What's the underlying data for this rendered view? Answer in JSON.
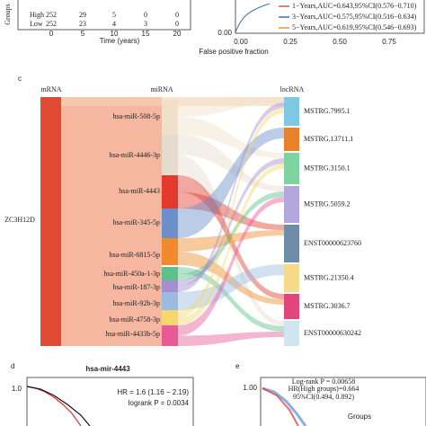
{
  "panel_b": {
    "risk_table": {
      "y_label": "Groups",
      "rows": [
        [
          "High",
          "252",
          "29",
          "5",
          "0",
          "0"
        ],
        [
          "Low",
          "252",
          "23",
          "4",
          "3",
          "0"
        ]
      ],
      "x_ticks": [
        "0",
        "5",
        "10",
        "15",
        "20"
      ],
      "x_label": "Time (years)"
    },
    "roc": {
      "legend": [
        "1−Years,AUC=0.643,95%CI(0.576−0.710)",
        "3−Years,AUC=0.575,95%CI(0.516−0.634)",
        "5−Years,AUC=0.619,95%CI(0.546−0.693)"
      ],
      "y_tick": "0.00",
      "x_ticks": [
        "0.00",
        "0.25",
        "0.50",
        "0.75"
      ],
      "x_label": "False positive fraction"
    }
  },
  "panel_c": {
    "label": "c",
    "headers": [
      "mRNA",
      "miRNA",
      "lncRNA"
    ],
    "mrna": "ZC3H12D",
    "mirnas": [
      "hsa-miR-508-5p",
      "hsa-miR-4446-3p",
      "hsa-miR-4443",
      "hsa-miR-345-5p",
      "hsa-miR-6815-5p",
      "hsa-miR-450a-1-3p",
      "hsa-miR-187-3p",
      "hsa-miR-92b-3p",
      "hsa-miR-4758-3p",
      "hsa-miR-4433b-5p"
    ],
    "lncrnas": [
      "MSTRG.7995.1",
      "MSTRG.13711.1",
      "MSTRG.3150.1",
      "MSTRG.5059.2",
      "ENST00000623760",
      "MSTRG.21350.4",
      "MSTRG.3036.7",
      "ENST00000630242"
    ]
  },
  "panel_d": {
    "label": "d",
    "title": "hsa-mir-4443",
    "y_tick": "1.0",
    "hr": "HR = 1.6 (1.16 − 2.19)",
    "logrank": "logrank P = 0.0034"
  },
  "panel_e": {
    "label": "e",
    "y_tick": "1.00",
    "logrank": "Log-rank P = 0.00658",
    "hr": "HR(High groups)=0.664",
    "ci": "95%CI(0.494, 0.892)",
    "legend_title": "Groups"
  }
}
